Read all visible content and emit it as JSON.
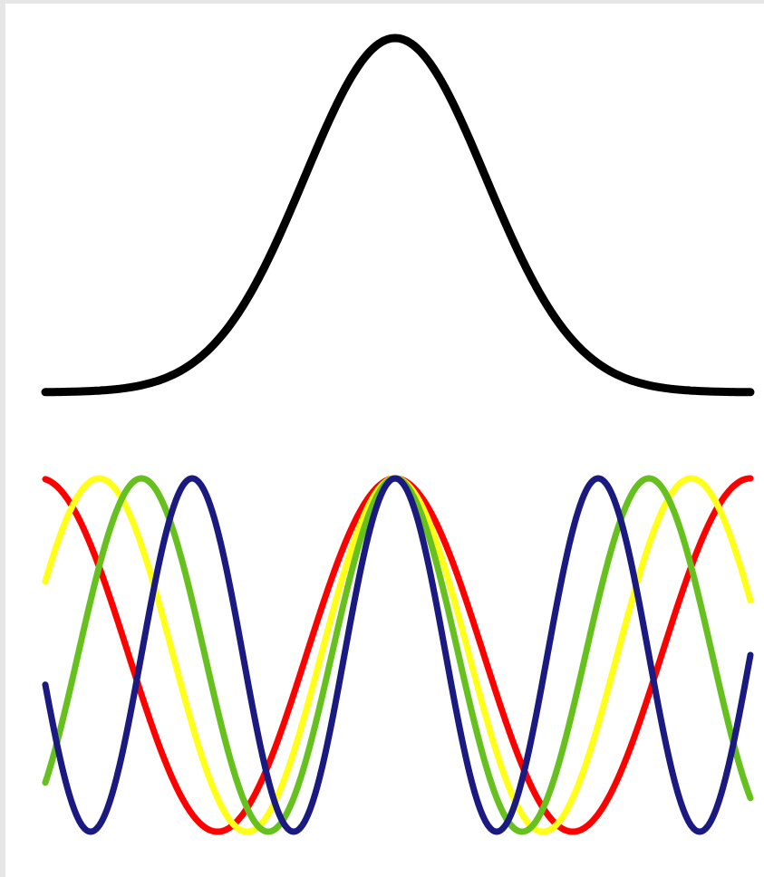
{
  "diagram": {
    "type": "wave-packet-illustration",
    "envelope": {
      "shape": "gaussian",
      "color": "#000000"
    },
    "components": [
      {
        "color": "#ff0000",
        "cycles_per_half_width": 1.0,
        "phase": 0
      },
      {
        "color": "#ffff1a",
        "cycles_per_half_width": 1.2,
        "phase": 0
      },
      {
        "color": "#66c11f",
        "cycles_per_half_width": 1.4,
        "phase": 0
      },
      {
        "color": "#1a1a80",
        "cycles_per_half_width": 1.75,
        "phase": 0
      }
    ]
  }
}
